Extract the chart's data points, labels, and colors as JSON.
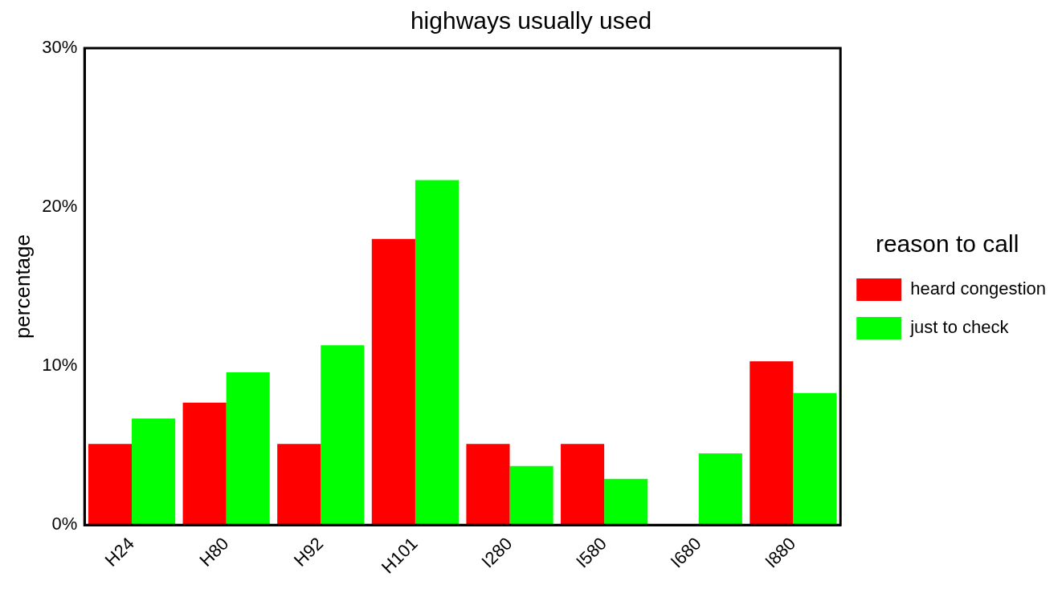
{
  "chart_data": {
    "type": "bar",
    "title": "highways usually used",
    "ylabel": "percentage",
    "legend_title": "reason to call",
    "categories": [
      "H24",
      "H80",
      "H92",
      "H101",
      "I280",
      "I580",
      "I680",
      "I880"
    ],
    "series": [
      {
        "name": "heard congestion",
        "color": "#ff0000",
        "values": [
          5.1,
          7.7,
          5.1,
          18.0,
          5.1,
          5.1,
          null,
          10.3
        ]
      },
      {
        "name": "just to check",
        "color": "#00ff00",
        "values": [
          6.7,
          9.6,
          11.3,
          21.7,
          3.7,
          2.9,
          4.5,
          8.3
        ]
      }
    ],
    "ylim": [
      0,
      30
    ],
    "yticks": [
      {
        "value": 0,
        "label": "0%"
      },
      {
        "value": 10,
        "label": "10%"
      },
      {
        "value": 20,
        "label": "20%"
      },
      {
        "value": 30,
        "label": "30%"
      }
    ],
    "grid": false,
    "legend": "right"
  }
}
